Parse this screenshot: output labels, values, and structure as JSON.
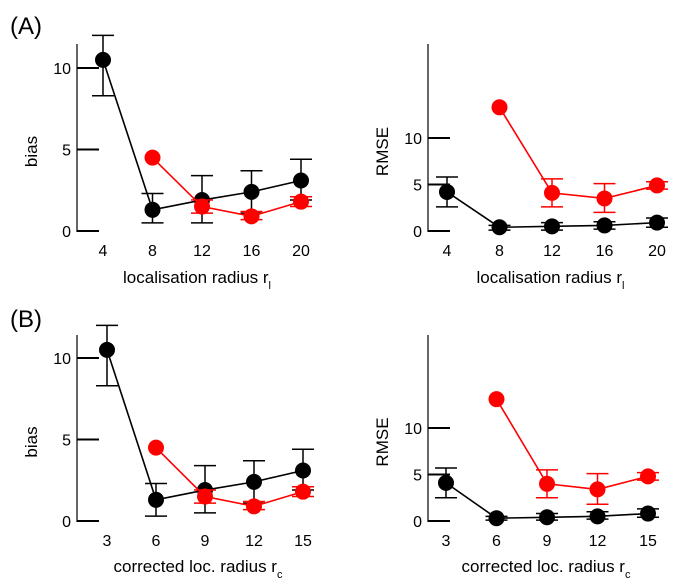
{
  "panel_labels": [
    "(A)",
    "(B)"
  ],
  "colors": {
    "black_series": "#000000",
    "red_series": "#ff0000",
    "axis": "#000000"
  },
  "chart_data": [
    {
      "type": "line",
      "panel": "A",
      "ylabel": "bias",
      "xlabel": "localisation radius r",
      "xlabel_sub": "l",
      "categories": [
        "4",
        "8",
        "12",
        "16",
        "20"
      ],
      "ylim": [
        0,
        12
      ],
      "yticks": [
        0,
        5,
        10
      ],
      "ytick_labels": [
        "0",
        "5",
        "10"
      ],
      "series": [
        {
          "color": "#000000",
          "values": [
            10.5,
            1.3,
            1.9,
            2.4,
            3.1
          ],
          "err_low": [
            8.3,
            0.5,
            0.5,
            1.1,
            1.9
          ],
          "err_high": [
            12.0,
            2.3,
            3.4,
            3.7,
            4.4
          ]
        },
        {
          "color": "#ff0000",
          "values": [
            null,
            4.5,
            1.5,
            0.9,
            1.8
          ],
          "err_low": [
            null,
            null,
            1.1,
            0.7,
            1.5
          ],
          "err_high": [
            null,
            null,
            1.9,
            1.2,
            2.1
          ]
        }
      ]
    },
    {
      "type": "line",
      "panel": "A",
      "ylabel": "RMSE",
      "xlabel": "localisation radius r",
      "xlabel_sub": "l",
      "categories": [
        "4",
        "8",
        "12",
        "16",
        "20"
      ],
      "ylim": [
        0,
        14
      ],
      "yticks": [
        0,
        5,
        10
      ],
      "ytick_labels": [
        "0",
        "5",
        "10"
      ],
      "series": [
        {
          "color": "#000000",
          "values": [
            4.2,
            0.4,
            0.5,
            0.6,
            0.9
          ],
          "err_low": [
            2.6,
            0.1,
            0.1,
            0.2,
            0.4
          ],
          "err_high": [
            5.8,
            0.6,
            0.9,
            1.0,
            1.4
          ]
        },
        {
          "color": "#ff0000",
          "values": [
            null,
            13.3,
            4.1,
            3.5,
            4.9
          ],
          "err_low": [
            null,
            null,
            2.6,
            2.0,
            4.5
          ],
          "err_high": [
            null,
            null,
            5.6,
            5.1,
            5.3
          ]
        }
      ]
    },
    {
      "type": "line",
      "panel": "B",
      "ylabel": "bias",
      "xlabel": "corrected loc. radius r",
      "xlabel_sub": "c",
      "categories": [
        "3",
        "6",
        "9",
        "12",
        "15"
      ],
      "ylim": [
        0,
        12
      ],
      "yticks": [
        0,
        5,
        10
      ],
      "ytick_labels": [
        "0",
        "5",
        "10"
      ],
      "series": [
        {
          "color": "#000000",
          "values": [
            10.5,
            1.3,
            1.9,
            2.4,
            3.1
          ],
          "err_low": [
            8.3,
            0.3,
            0.5,
            1.1,
            1.9
          ],
          "err_high": [
            12.0,
            2.3,
            3.4,
            3.7,
            4.4
          ]
        },
        {
          "color": "#ff0000",
          "values": [
            null,
            4.5,
            1.5,
            0.9,
            1.8
          ],
          "err_low": [
            null,
            null,
            1.1,
            0.7,
            1.5
          ],
          "err_high": [
            null,
            null,
            1.9,
            1.2,
            2.1
          ]
        }
      ]
    },
    {
      "type": "line",
      "panel": "B",
      "ylabel": "RMSE",
      "xlabel": "corrected loc. radius r",
      "xlabel_sub": "c",
      "categories": [
        "3",
        "6",
        "9",
        "12",
        "15"
      ],
      "ylim": [
        0,
        14
      ],
      "yticks": [
        0,
        5,
        10
      ],
      "ytick_labels": [
        "0",
        "5",
        "10"
      ],
      "series": [
        {
          "color": "#000000",
          "values": [
            4.1,
            0.3,
            0.4,
            0.5,
            0.8
          ],
          "err_low": [
            2.5,
            0.1,
            0.1,
            0.2,
            0.4
          ],
          "err_high": [
            5.7,
            0.5,
            0.8,
            1.0,
            1.3
          ]
        },
        {
          "color": "#ff0000",
          "values": [
            null,
            13.1,
            4.0,
            3.4,
            4.8
          ],
          "err_low": [
            null,
            null,
            2.5,
            1.8,
            4.4
          ],
          "err_high": [
            null,
            null,
            5.5,
            5.1,
            5.2
          ]
        }
      ]
    }
  ]
}
